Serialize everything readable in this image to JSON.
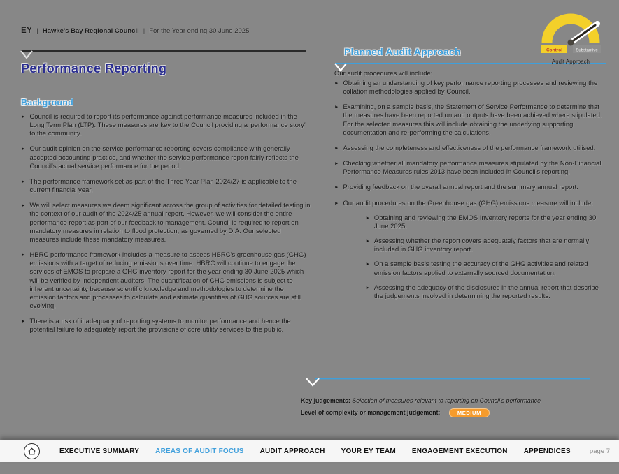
{
  "header": {
    "brand": "EY",
    "separator": "|",
    "org": "Hawke's Bay Regional Council",
    "period": "For the Year ending 30 June 2025"
  },
  "title": "Performance Reporting",
  "background": {
    "heading": "Background",
    "bullets": [
      "Council is required to report its performance against performance measures included in the Long Term Plan (LTP). These measures are key to the Council providing a 'performance story' to the community.",
      "Our audit opinion on the service performance reporting covers compliance with generally accepted accounting practice, and whether the service performance report fairly reflects the Council's actual service performance for the period.",
      "The performance framework set as part of the Three Year Plan 2024/27 is applicable to the current financial year.",
      "We will select measures we deem significant across the group of activities for detailed testing in the context of our audit of the 2024/25 annual report. However, we will consider the entire performance report as part of our feedback to management.  Council is required to report on mandatory measures in relation to flood protection, as governed by DIA. Our selected measures include these mandatory measures.",
      "HBRC performance framework includes a measure to assess HBRC's greenhouse gas (GHG) emissions with a target of reducing emissions over time. HBRC will continue to engage the services of EMOS to prepare a GHG inventory report for the year ending 30 June 2025 which will be verified by independent auditors. The quantification of GHG emissions is subject to inherent uncertainty because scientific knowledge and methodologies to determine the emission factors and processes to calculate and estimate quantities of GHG sources are still evolving.",
      "There is a risk of inadequacy of reporting systems to monitor performance and hence the potential failure to adequately report the provisions of core utility services to the public."
    ]
  },
  "approach": {
    "heading": "Planned Audit Approach",
    "intro": "Our audit procedures will include:",
    "bullets": [
      "Obtaining an understanding of key performance reporting processes and reviewing the collation methodologies applied by Council.",
      "Examining, on a sample basis, the Statement of Service Performance to determine that the measures have been reported on and outputs have been achieved where stipulated. For the selected measures this will include obtaining the underlying supporting documentation and re-performing the calculations.",
      "Assessing the completeness and effectiveness of the performance framework utilised.",
      "Checking whether all mandatory performance measures stipulated by the Non-Financial Performance Measures rules 2013 have been included in Council's reporting.",
      "Providing feedback on the overall annual report and the summary annual report.",
      {
        "text": "Our audit procedures on the Greenhouse gas (GHG) emissions measure will include:",
        "subs": [
          "Obtaining and reviewing the EMOS Inventory reports for the year ending 30 June 2025.",
          "Assessing whether the report covers adequately factors that are normally included in GHG inventory report.",
          "On a sample basis testing the accuracy of the GHG activities and related emission factors applied to externally sourced documentation.",
          "Assessing the adequacy of the disclosures in the annual report that describe the judgements involved in determining the reported results."
        ]
      }
    ]
  },
  "gauge": {
    "left_label": "Control",
    "right_label": "Substantive",
    "caption": "Audit Approach"
  },
  "judgements": {
    "key_label": "Key judgements:",
    "key_text": "Selection of measures relevant to reporting on Council's performance",
    "complexity_label": "Level of complexity or management judgement:",
    "badge": "MEDIUM",
    "badge_color": "#F59B2C"
  },
  "nav": {
    "items": [
      {
        "label": "EXECUTIVE SUMMARY",
        "active": false
      },
      {
        "label": "AREAS OF AUDIT FOCUS",
        "active": true
      },
      {
        "label": "AUDIT APPROACH",
        "active": false
      },
      {
        "label": "YOUR EY TEAM",
        "active": false
      },
      {
        "label": "ENGAGEMENT EXECUTION",
        "active": false
      },
      {
        "label": "APPENDICES",
        "active": false
      }
    ],
    "page_label": "page",
    "page_number": "7",
    "active_color": "#41A0DC"
  },
  "colors": {
    "page_bg": "#878787",
    "accent_blue": "#3F9FDB",
    "title_navy": "#2A2D8F",
    "badge_orange": "#F59B2C",
    "gauge_yellow": "#F3D02A"
  }
}
